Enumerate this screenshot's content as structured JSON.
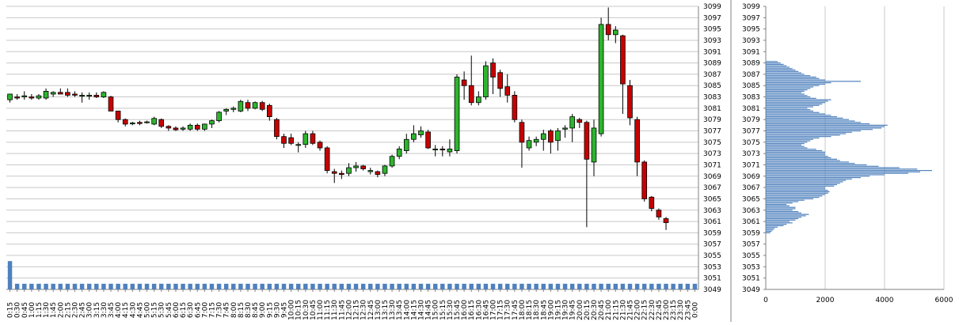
{
  "chart_data": [
    {
      "type": "candlestick",
      "title": "",
      "xlabel": "",
      "ylabel": "",
      "ylim": [
        3049,
        3099
      ],
      "y_ticks": [
        3049,
        3051,
        3053,
        3055,
        3057,
        3059,
        3061,
        3063,
        3065,
        3067,
        3069,
        3071,
        3073,
        3075,
        3077,
        3079,
        3081,
        3083,
        3085,
        3087,
        3089,
        3091,
        3093,
        3095,
        3097,
        3099
      ],
      "grid": "horizontal",
      "colors": {
        "up": "#2db52d",
        "down": "#c80000",
        "volume": "#4f81bd",
        "grid": "#c8c8c8"
      },
      "x_labels": [
        "0:15",
        "0:30",
        "0:45",
        "1:00",
        "1:15",
        "1:30",
        "1:45",
        "2:00",
        "2:15",
        "2:30",
        "2:45",
        "3:00",
        "3:15",
        "3:30",
        "3:45",
        "4:00",
        "4:15",
        "4:30",
        "4:45",
        "5:00",
        "5:15",
        "5:30",
        "5:45",
        "6:00",
        "6:15",
        "6:30",
        "6:45",
        "7:00",
        "7:15",
        "7:30",
        "7:45",
        "8:00",
        "8:15",
        "8:30",
        "8:45",
        "9:00",
        "9:15",
        "9:30",
        "9:45",
        "10:00",
        "10:15",
        "10:30",
        "10:45",
        "11:00",
        "11:15",
        "11:30",
        "11:45",
        "12:00",
        "12:15",
        "12:30",
        "12:45",
        "13:00",
        "13:15",
        "13:30",
        "13:45",
        "14:00",
        "14:15",
        "14:30",
        "14:45",
        "15:00",
        "15:15",
        "15:30",
        "15:45",
        "16:00",
        "16:15",
        "16:30",
        "16:45",
        "17:00",
        "17:15",
        "17:30",
        "17:45",
        "18:00",
        "18:15",
        "18:30",
        "18:45",
        "19:00",
        "19:15",
        "19:30",
        "19:45",
        "20:00",
        "20:15",
        "20:30",
        "20:45",
        "21:00",
        "21:15",
        "21:30",
        "21:45",
        "22:00",
        "22:15",
        "22:30",
        "22:45",
        "23:00",
        "23:15",
        "23:30",
        "23:45",
        "0:00"
      ],
      "candles": [
        {
          "o": 3082.5,
          "h": 3083.5,
          "l": 3082.0,
          "c": 3083.5
        },
        {
          "o": 3083.0,
          "h": 3083.5,
          "l": 3082.5,
          "c": 3082.8
        },
        {
          "o": 3083.0,
          "h": 3084.0,
          "l": 3082.5,
          "c": 3083.2
        },
        {
          "o": 3083.0,
          "h": 3083.5,
          "l": 3082.5,
          "c": 3082.8
        },
        {
          "o": 3082.8,
          "h": 3083.5,
          "l": 3082.5,
          "c": 3083.2
        },
        {
          "o": 3082.8,
          "h": 3084.5,
          "l": 3082.5,
          "c": 3084.0
        },
        {
          "o": 3083.5,
          "h": 3084.0,
          "l": 3083.0,
          "c": 3083.8
        },
        {
          "o": 3083.8,
          "h": 3084.5,
          "l": 3083.5,
          "c": 3083.5
        },
        {
          "o": 3083.8,
          "h": 3084.5,
          "l": 3083.0,
          "c": 3083.3
        },
        {
          "o": 3083.5,
          "h": 3084.0,
          "l": 3083.0,
          "c": 3083.3
        },
        {
          "o": 3083.3,
          "h": 3083.8,
          "l": 3082.0,
          "c": 3083.3
        },
        {
          "o": 3083.3,
          "h": 3083.8,
          "l": 3082.5,
          "c": 3083.3
        },
        {
          "o": 3083.3,
          "h": 3083.8,
          "l": 3082.8,
          "c": 3083.0
        },
        {
          "o": 3083.0,
          "h": 3084.0,
          "l": 3082.8,
          "c": 3083.8
        },
        {
          "o": 3083.0,
          "h": 3083.2,
          "l": 3080.5,
          "c": 3080.5
        },
        {
          "o": 3080.5,
          "h": 3080.5,
          "l": 3078.5,
          "c": 3079.0
        },
        {
          "o": 3079.0,
          "h": 3079.2,
          "l": 3077.8,
          "c": 3078.2
        },
        {
          "o": 3078.3,
          "h": 3078.6,
          "l": 3078.0,
          "c": 3078.4
        },
        {
          "o": 3078.5,
          "h": 3078.8,
          "l": 3078.0,
          "c": 3078.3
        },
        {
          "o": 3078.5,
          "h": 3078.8,
          "l": 3078.3,
          "c": 3078.6
        },
        {
          "o": 3078.2,
          "h": 3079.5,
          "l": 3078.0,
          "c": 3079.2
        },
        {
          "o": 3079.0,
          "h": 3079.2,
          "l": 3077.5,
          "c": 3077.8
        },
        {
          "o": 3077.8,
          "h": 3078.0,
          "l": 3077.0,
          "c": 3077.5
        },
        {
          "o": 3077.5,
          "h": 3077.8,
          "l": 3077.0,
          "c": 3077.2
        },
        {
          "o": 3077.3,
          "h": 3077.8,
          "l": 3077.0,
          "c": 3077.5
        },
        {
          "o": 3077.3,
          "h": 3078.3,
          "l": 3077.0,
          "c": 3078.0
        },
        {
          "o": 3078.0,
          "h": 3078.3,
          "l": 3077.0,
          "c": 3077.3
        },
        {
          "o": 3077.3,
          "h": 3078.3,
          "l": 3077.0,
          "c": 3078.2
        },
        {
          "o": 3078.2,
          "h": 3079.0,
          "l": 3077.5,
          "c": 3078.8
        },
        {
          "o": 3078.8,
          "h": 3080.5,
          "l": 3078.5,
          "c": 3080.3
        },
        {
          "o": 3080.5,
          "h": 3081.0,
          "l": 3079.8,
          "c": 3080.8
        },
        {
          "o": 3080.8,
          "h": 3081.3,
          "l": 3080.3,
          "c": 3081.0
        },
        {
          "o": 3080.5,
          "h": 3082.5,
          "l": 3080.3,
          "c": 3082.2
        },
        {
          "o": 3082.0,
          "h": 3082.5,
          "l": 3080.5,
          "c": 3081.0
        },
        {
          "o": 3081.0,
          "h": 3082.2,
          "l": 3080.8,
          "c": 3082.0
        },
        {
          "o": 3082.0,
          "h": 3082.3,
          "l": 3080.5,
          "c": 3080.8
        },
        {
          "o": 3081.5,
          "h": 3081.8,
          "l": 3078.8,
          "c": 3079.5
        },
        {
          "o": 3079.0,
          "h": 3079.3,
          "l": 3075.5,
          "c": 3076.0
        },
        {
          "o": 3076.0,
          "h": 3076.5,
          "l": 3074.0,
          "c": 3074.8
        },
        {
          "o": 3075.8,
          "h": 3076.5,
          "l": 3074.5,
          "c": 3074.8
        },
        {
          "o": 3074.5,
          "h": 3075.0,
          "l": 3073.2,
          "c": 3074.6
        },
        {
          "o": 3074.6,
          "h": 3077.0,
          "l": 3074.0,
          "c": 3076.5
        },
        {
          "o": 3076.5,
          "h": 3077.0,
          "l": 3074.5,
          "c": 3074.8
        },
        {
          "o": 3075.0,
          "h": 3075.3,
          "l": 3073.5,
          "c": 3074.0
        },
        {
          "o": 3074.0,
          "h": 3074.3,
          "l": 3069.5,
          "c": 3070.0
        },
        {
          "o": 3069.8,
          "h": 3070.3,
          "l": 3067.8,
          "c": 3069.5
        },
        {
          "o": 3069.5,
          "h": 3070.0,
          "l": 3068.5,
          "c": 3069.3
        },
        {
          "o": 3069.5,
          "h": 3071.3,
          "l": 3069.0,
          "c": 3070.5
        },
        {
          "o": 3070.5,
          "h": 3071.5,
          "l": 3069.8,
          "c": 3070.8
        },
        {
          "o": 3070.8,
          "h": 3071.0,
          "l": 3070.0,
          "c": 3070.3
        },
        {
          "o": 3069.8,
          "h": 3070.5,
          "l": 3069.3,
          "c": 3070.0
        },
        {
          "o": 3069.8,
          "h": 3070.0,
          "l": 3068.8,
          "c": 3069.3
        },
        {
          "o": 3069.5,
          "h": 3071.0,
          "l": 3069.0,
          "c": 3070.8
        },
        {
          "o": 3070.8,
          "h": 3072.8,
          "l": 3070.5,
          "c": 3072.5
        },
        {
          "o": 3072.5,
          "h": 3074.3,
          "l": 3072.0,
          "c": 3073.8
        },
        {
          "o": 3073.5,
          "h": 3076.5,
          "l": 3073.0,
          "c": 3075.5
        },
        {
          "o": 3075.5,
          "h": 3078.0,
          "l": 3075.0,
          "c": 3076.5
        },
        {
          "o": 3076.3,
          "h": 3077.8,
          "l": 3075.8,
          "c": 3077.0
        },
        {
          "o": 3076.8,
          "h": 3077.2,
          "l": 3073.8,
          "c": 3074.0
        },
        {
          "o": 3073.8,
          "h": 3074.5,
          "l": 3072.5,
          "c": 3073.8
        },
        {
          "o": 3073.8,
          "h": 3074.3,
          "l": 3072.5,
          "c": 3073.7
        },
        {
          "o": 3073.3,
          "h": 3075.5,
          "l": 3072.5,
          "c": 3073.8
        },
        {
          "o": 3073.5,
          "h": 3087.0,
          "l": 3073.0,
          "c": 3086.5
        },
        {
          "o": 3086.0,
          "h": 3087.5,
          "l": 3082.5,
          "c": 3085.0
        },
        {
          "o": 3085.0,
          "h": 3090.3,
          "l": 3081.5,
          "c": 3082.0
        },
        {
          "o": 3082.0,
          "h": 3084.0,
          "l": 3081.5,
          "c": 3083.0
        },
        {
          "o": 3083.0,
          "h": 3089.3,
          "l": 3082.5,
          "c": 3088.5
        },
        {
          "o": 3089.0,
          "h": 3089.8,
          "l": 3083.5,
          "c": 3086.5
        },
        {
          "o": 3087.3,
          "h": 3087.8,
          "l": 3083.0,
          "c": 3084.5
        },
        {
          "o": 3084.8,
          "h": 3087.0,
          "l": 3082.0,
          "c": 3083.3
        },
        {
          "o": 3083.3,
          "h": 3084.0,
          "l": 3078.5,
          "c": 3079.0
        },
        {
          "o": 3078.5,
          "h": 3079.0,
          "l": 3070.5,
          "c": 3075.0
        },
        {
          "o": 3074.0,
          "h": 3076.0,
          "l": 3073.5,
          "c": 3075.3
        },
        {
          "o": 3075.0,
          "h": 3076.0,
          "l": 3074.3,
          "c": 3075.5
        },
        {
          "o": 3075.5,
          "h": 3077.2,
          "l": 3073.5,
          "c": 3076.5
        },
        {
          "o": 3077.0,
          "h": 3077.3,
          "l": 3073.0,
          "c": 3075.0
        },
        {
          "o": 3075.3,
          "h": 3077.5,
          "l": 3073.5,
          "c": 3077.0
        },
        {
          "o": 3077.3,
          "h": 3078.0,
          "l": 3075.8,
          "c": 3077.5
        },
        {
          "o": 3077.5,
          "h": 3080.0,
          "l": 3075.0,
          "c": 3079.5
        },
        {
          "o": 3079.0,
          "h": 3079.3,
          "l": 3077.5,
          "c": 3078.5
        },
        {
          "o": 3078.5,
          "h": 3078.8,
          "l": 3060.0,
          "c": 3072.0
        },
        {
          "o": 3071.5,
          "h": 3079.0,
          "l": 3069.0,
          "c": 3077.5
        },
        {
          "o": 3076.5,
          "h": 3097.0,
          "l": 3076.0,
          "c": 3095.8
        },
        {
          "o": 3095.8,
          "h": 3098.8,
          "l": 3093.0,
          "c": 3094.0
        },
        {
          "o": 3094.0,
          "h": 3095.5,
          "l": 3092.5,
          "c": 3094.8
        },
        {
          "o": 3093.8,
          "h": 3094.0,
          "l": 3080.0,
          "c": 3085.3
        },
        {
          "o": 3085.0,
          "h": 3086.0,
          "l": 3078.0,
          "c": 3079.3
        },
        {
          "o": 3079.0,
          "h": 3079.5,
          "l": 3069.0,
          "c": 3071.5
        },
        {
          "o": 3071.5,
          "h": 3071.8,
          "l": 3064.5,
          "c": 3065.0
        },
        {
          "o": 3065.3,
          "h": 3065.5,
          "l": 3062.8,
          "c": 3063.3
        },
        {
          "o": 3063.0,
          "h": 3063.3,
          "l": 3061.3,
          "c": 3061.8
        },
        {
          "o": 3061.5,
          "h": 3061.8,
          "l": 3059.5,
          "c": 3060.8
        }
      ],
      "volume": [
        5,
        1,
        1,
        1,
        1,
        1,
        1,
        1,
        1,
        1,
        1,
        1,
        1,
        1,
        1,
        1,
        1,
        1,
        1,
        1,
        1,
        1,
        1,
        1,
        1,
        1,
        1,
        1,
        1,
        1,
        1,
        1,
        1,
        1,
        1,
        1,
        1,
        1,
        1,
        1,
        1,
        1,
        1,
        1,
        1,
        1,
        1,
        1,
        1,
        1,
        1,
        1,
        1,
        1,
        1,
        1,
        1,
        1,
        1,
        1,
        1,
        1,
        1,
        1,
        1,
        1,
        1,
        1,
        1,
        1,
        1,
        1,
        1,
        1,
        1,
        1,
        1,
        1,
        1,
        1,
        1,
        1,
        1,
        1,
        1,
        1,
        1,
        1,
        1,
        1,
        1,
        1,
        1,
        1,
        1,
        1
      ]
    },
    {
      "type": "bar",
      "orientation": "horizontal",
      "title": "",
      "xlabel": "",
      "ylabel": "",
      "xlim": [
        0,
        6000
      ],
      "x_ticks": [
        0,
        2000,
        4000,
        6000
      ],
      "ylim": [
        3049,
        3099
      ],
      "y_ticks": [
        3049,
        3051,
        3053,
        3055,
        3057,
        3059,
        3061,
        3063,
        3065,
        3067,
        3069,
        3071,
        3073,
        3075,
        3077,
        3079,
        3081,
        3083,
        3085,
        3087,
        3089,
        3091,
        3093,
        3095,
        3097,
        3099
      ],
      "grid": "vertical",
      "color": "#4f81bd",
      "price_start": 3059.0,
      "price_step": 0.25,
      "values": [
        150,
        200,
        250,
        300,
        400,
        600,
        700,
        900,
        800,
        1000,
        1100,
        1200,
        1350,
        1450,
        1200,
        1100,
        900,
        1000,
        1000,
        800,
        700,
        900,
        1100,
        1300,
        1600,
        1800,
        1900,
        2000,
        2100,
        2150,
        2100,
        2000,
        2000,
        2300,
        2400,
        2500,
        2600,
        2700,
        2900,
        3200,
        3500,
        4000,
        4800,
        5200,
        5600,
        5100,
        4500,
        3800,
        3400,
        3000,
        2800,
        2500,
        2400,
        2200,
        2100,
        2000,
        2000,
        2000,
        1900,
        1700,
        1400,
        1300,
        1200,
        1300,
        1400,
        1500,
        1600,
        1800,
        2200,
        2500,
        2700,
        2900,
        3200,
        3600,
        3900,
        4000,
        4100,
        3500,
        3200,
        3000,
        2800,
        2600,
        2400,
        2200,
        2000,
        1800,
        1600,
        1500,
        1400,
        1600,
        1800,
        1900,
        2000,
        2100,
        2200,
        1700,
        1500,
        1400,
        1300,
        1200,
        1300,
        1400,
        1500,
        1600,
        1800,
        2000,
        2200,
        3200,
        2000,
        1800,
        1700,
        1500,
        1300,
        1200,
        1100,
        1000,
        900,
        800,
        700,
        600,
        500,
        400
      ]
    }
  ]
}
